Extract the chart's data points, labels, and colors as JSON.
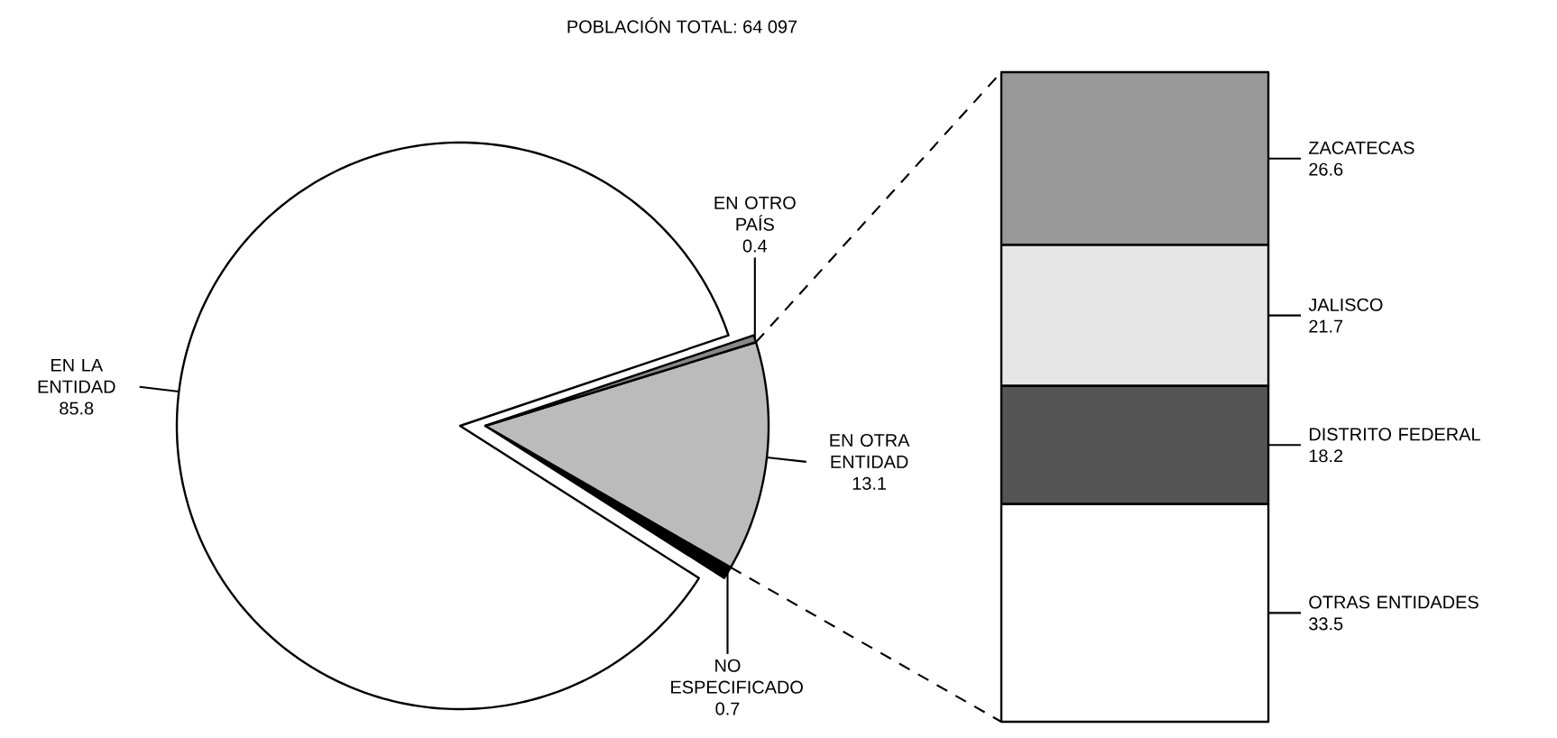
{
  "chart_data": [
    {
      "type": "pie",
      "title": "POBLACIÓN TOTAL: 64 097",
      "categories": [
        "NO ESPECIFICADO",
        "EN OTRA ENTIDAD",
        "EN OTRO PAÍS",
        "EN LA ENTIDAD"
      ],
      "values": [
        0.7,
        13.1,
        0.4,
        85.8
      ],
      "colors": [
        "#000000",
        "#bbbbbb",
        "#888888",
        "#ffffff"
      ],
      "data_labels": true
    },
    {
      "type": "bar",
      "stacked": true,
      "categories": [
        null
      ],
      "series": [
        {
          "name": "OTRAS ENTIDADES",
          "color": "#ffffff",
          "values": [
            33.5
          ]
        },
        {
          "name": "DISTRITO FEDERAL",
          "color": "#555555",
          "values": [
            18.2
          ]
        },
        {
          "name": "JALISCO",
          "color": "#e6e6e6",
          "values": [
            21.7
          ]
        },
        {
          "name": "ZACATECAS",
          "color": "#999999",
          "values": [
            26.6
          ]
        }
      ],
      "data_labels": true
    }
  ]
}
